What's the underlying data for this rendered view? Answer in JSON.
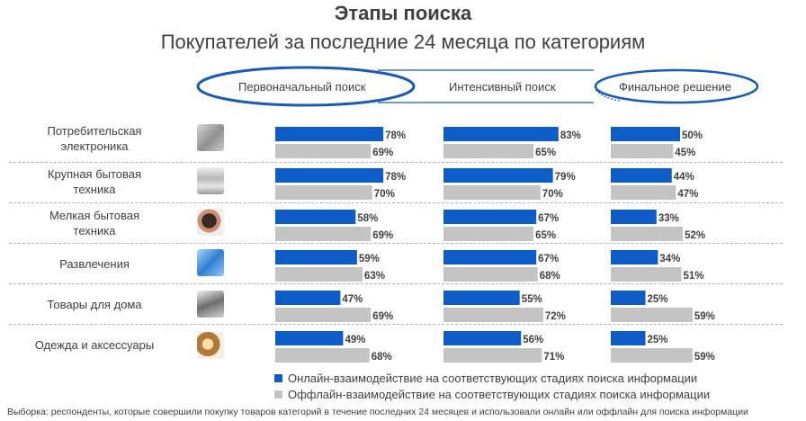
{
  "title": "Этапы поиска",
  "subtitle": "Покупателей за последние 24 месяца по категориям",
  "stages": [
    "Первоначальный поиск",
    "Интенсивный поиск",
    "Финальное решение"
  ],
  "legend": {
    "online": "Онлайн-взаимодействие на соответствующих стадиях поиска информации",
    "offline": "Оффлайн-взаимодействие на соответствующих стадиях поиска информации"
  },
  "footnote": "Выборка: респонденты, которые совершили покупку товаров категорий в течение последних 24 месяцев и использовали онлайн или оффлайн для поиска информации",
  "colors": {
    "online": "#0d5cc7",
    "offline": "#c4c4c4",
    "ellipse": "#1a5bb5",
    "text": "#404040"
  },
  "categories": [
    {
      "line1": "Потребительская",
      "line2": "электроника",
      "icon": "electronics-icon"
    },
    {
      "line1": "Крупная бытовая",
      "line2": "техника",
      "icon": "appliance-icon"
    },
    {
      "line1": "Мелкая бытовая",
      "line2": "техника",
      "icon": "hairdryer-icon"
    },
    {
      "line1": "Развлечения",
      "line2": "",
      "icon": "disc-icon"
    },
    {
      "line1": "Товары для дома",
      "line2": "",
      "icon": "iron-icon"
    },
    {
      "line1": "Одежда и аксессуары",
      "line2": "",
      "icon": "accessories-icon"
    }
  ],
  "chart_data": {
    "type": "bar",
    "orientation": "horizontal",
    "unit": "%",
    "xlim": [
      0,
      100
    ],
    "categories": [
      "Потребительская электроника",
      "Крупная бытовая техника",
      "Мелкая бытовая техника",
      "Развлечения",
      "Товары для дома",
      "Одежда и аксессуары"
    ],
    "panels": [
      "Первоначальный поиск",
      "Интенсивный поиск",
      "Финальное решение"
    ],
    "series": [
      {
        "name": "Онлайн-взаимодействие на соответствующих стадиях поиска информации",
        "values": [
          [
            78,
            83,
            50
          ],
          [
            78,
            79,
            44
          ],
          [
            58,
            67,
            33
          ],
          [
            59,
            67,
            34
          ],
          [
            47,
            55,
            25
          ],
          [
            49,
            56,
            25
          ]
        ]
      },
      {
        "name": "Оффлайн-взаимодействие на соответствующих стадиях поиска информации",
        "values": [
          [
            69,
            65,
            45
          ],
          [
            70,
            70,
            47
          ],
          [
            69,
            65,
            52
          ],
          [
            63,
            68,
            51
          ],
          [
            69,
            72,
            59
          ],
          [
            68,
            71,
            59
          ]
        ]
      }
    ]
  }
}
